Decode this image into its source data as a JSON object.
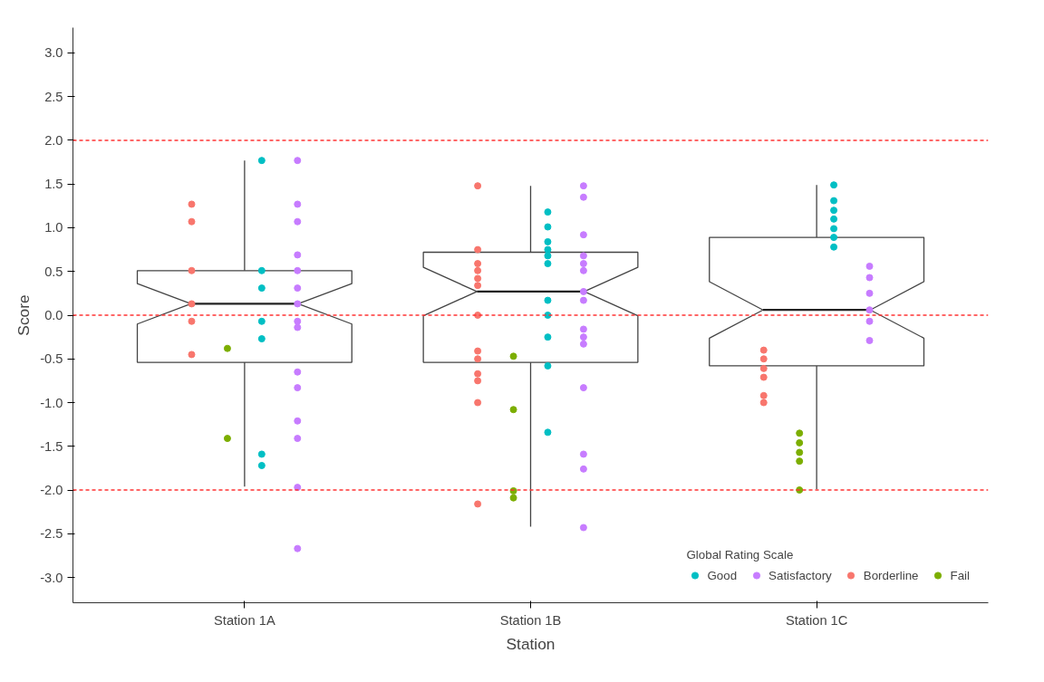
{
  "chart_data": {
    "type": "box",
    "xlabel": "Station",
    "ylabel": "Score",
    "legend_title": "Global Rating Scale",
    "categories": [
      "Station 1A",
      "Station 1B",
      "Station 1C"
    ],
    "boxes": [
      {
        "low": -1.96,
        "q1": -0.54,
        "median": 0.13,
        "q3": 0.51,
        "high": 1.77
      },
      {
        "low": -2.42,
        "q1": -0.54,
        "median": 0.27,
        "q3": 0.72,
        "high": 1.48
      },
      {
        "low": -1.99,
        "q1": -0.58,
        "median": 0.06,
        "q3": 0.89,
        "high": 1.49
      }
    ],
    "series": [
      {
        "name": "Good",
        "type": "scatter",
        "color": "#00bfc4",
        "x": [
          "Station 1A",
          "Station 1A",
          "Station 1A",
          "Station 1A",
          "Station 1A",
          "Station 1A",
          "Station 1A",
          "Station 1B",
          "Station 1B",
          "Station 1B",
          "Station 1B",
          "Station 1B",
          "Station 1B",
          "Station 1B",
          "Station 1B",
          "Station 1B",
          "Station 1B",
          "Station 1B",
          "Station 1C",
          "Station 1C",
          "Station 1C",
          "Station 1C",
          "Station 1C",
          "Station 1C",
          "Station 1C"
        ],
        "values": [
          1.77,
          0.51,
          0.31,
          -0.07,
          -0.27,
          -1.59,
          -1.72,
          1.18,
          1.01,
          0.84,
          0.75,
          0.68,
          0.59,
          0.17,
          0.0,
          -0.25,
          -0.58,
          -1.34,
          1.49,
          1.31,
          1.2,
          1.1,
          0.99,
          0.89,
          0.78
        ]
      },
      {
        "name": "Satisfactory",
        "type": "scatter",
        "color": "#c77cff",
        "x": [
          "Station 1A",
          "Station 1A",
          "Station 1A",
          "Station 1A",
          "Station 1A",
          "Station 1A",
          "Station 1A",
          "Station 1A",
          "Station 1A",
          "Station 1A",
          "Station 1A",
          "Station 1A",
          "Station 1A",
          "Station 1A",
          "Station 1A",
          "Station 1B",
          "Station 1B",
          "Station 1B",
          "Station 1B",
          "Station 1B",
          "Station 1B",
          "Station 1B",
          "Station 1B",
          "Station 1B",
          "Station 1B",
          "Station 1B",
          "Station 1B",
          "Station 1B",
          "Station 1B",
          "Station 1B",
          "Station 1C",
          "Station 1C",
          "Station 1C",
          "Station 1C",
          "Station 1C",
          "Station 1C"
        ],
        "values": [
          1.77,
          1.27,
          1.07,
          0.69,
          0.51,
          0.31,
          0.13,
          -0.07,
          -0.14,
          -0.65,
          -0.83,
          -1.21,
          -1.41,
          -1.97,
          -2.67,
          1.48,
          1.35,
          0.92,
          0.68,
          0.59,
          0.51,
          0.27,
          0.17,
          -0.16,
          -0.25,
          -0.33,
          -0.83,
          -1.59,
          -1.76,
          -2.43,
          0.56,
          0.43,
          0.25,
          0.06,
          -0.07,
          -0.29
        ]
      },
      {
        "name": "Borderline",
        "type": "scatter",
        "color": "#f8766d",
        "x": [
          "Station 1A",
          "Station 1A",
          "Station 1A",
          "Station 1A",
          "Station 1A",
          "Station 1A",
          "Station 1B",
          "Station 1B",
          "Station 1B",
          "Station 1B",
          "Station 1B",
          "Station 1B",
          "Station 1B",
          "Station 1B",
          "Station 1B",
          "Station 1B",
          "Station 1B",
          "Station 1B",
          "Station 1B",
          "Station 1C",
          "Station 1C",
          "Station 1C",
          "Station 1C",
          "Station 1C",
          "Station 1C",
          "Station 1C"
        ],
        "values": [
          1.27,
          1.07,
          0.51,
          0.13,
          -0.07,
          -0.45,
          1.48,
          0.75,
          0.59,
          0.51,
          0.42,
          0.34,
          0.0,
          -0.41,
          -0.5,
          -0.67,
          -0.75,
          -1.0,
          -2.16,
          -0.4,
          -0.5,
          -0.61,
          null,
          -0.71,
          -0.92,
          -1.0
        ]
      },
      {
        "name": "Fail",
        "type": "scatter",
        "color": "#7cae00",
        "x": [
          "Station 1A",
          "Station 1A",
          "Station 1B",
          "Station 1B",
          "Station 1B",
          "Station 1B",
          "Station 1C",
          "Station 1C",
          "Station 1C",
          "Station 1C",
          "Station 1C"
        ],
        "values": [
          -0.38,
          -1.41,
          -0.47,
          -1.08,
          -2.01,
          -2.09,
          -1.35,
          -1.46,
          -1.57,
          -1.67,
          -2.0
        ]
      }
    ],
    "ylim": [
      -3.29,
      3.29
    ],
    "yticks": [
      {
        "value": -3,
        "label": "-3.0"
      },
      {
        "value": -2.5,
        "label": "-2.5"
      },
      {
        "value": -2,
        "label": "-2.0"
      },
      {
        "value": -1.5,
        "label": "-1.5"
      },
      {
        "value": -1,
        "label": "-1.0"
      },
      {
        "value": -0.5,
        "label": "-0.5"
      },
      {
        "value": 0,
        "label": "0.0"
      },
      {
        "value": 0.5,
        "label": "0.5"
      },
      {
        "value": 1,
        "label": "1.0"
      },
      {
        "value": 1.5,
        "label": "1.5"
      },
      {
        "value": 2,
        "label": "2.0"
      },
      {
        "value": 2.5,
        "label": "2.5"
      },
      {
        "value": 3,
        "label": "3.0"
      }
    ],
    "ref_lines": [
      {
        "axis": "y",
        "value": 2,
        "color": "#ff3333",
        "line_style": "dashed"
      },
      {
        "axis": "y",
        "value": 0,
        "color": "#ff3333",
        "line_style": "dashed"
      },
      {
        "axis": "y",
        "value": -2,
        "color": "#ff3333",
        "line_style": "dashed"
      }
    ],
    "grid": false,
    "legend": "bottom right",
    "marker": "circle"
  }
}
